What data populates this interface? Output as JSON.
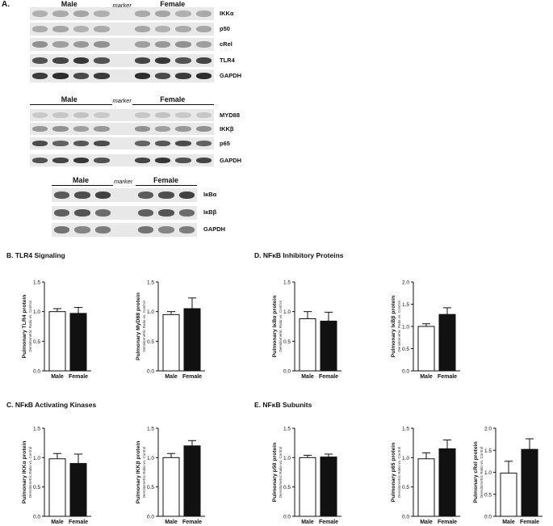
{
  "panel_a_label": "A.",
  "blots": [
    {
      "male_label": "Male",
      "marker_label": "marker",
      "female_label": "Female",
      "rows": [
        {
          "label": "IKKα",
          "intensity": 0.35
        },
        {
          "label": "p50",
          "intensity": 0.35
        },
        {
          "label": "cRel",
          "intensity": 0.45
        },
        {
          "label": "TLR4",
          "intensity": 0.9
        },
        {
          "label": "GAPDH",
          "intensity": 0.95
        }
      ]
    },
    {
      "male_label": "Male",
      "marker_label": "marker",
      "female_label": "Female",
      "rows": [
        {
          "label": "MYD88",
          "intensity": 0.2
        },
        {
          "label": "IKKβ",
          "intensity": 0.45
        },
        {
          "label": "p65",
          "intensity": 0.8
        },
        {
          "label": "GAPDH",
          "intensity": 0.9
        }
      ]
    },
    {
      "male_label": "Male",
      "marker_label": "marker",
      "female_label": "Female",
      "rows": [
        {
          "label": "IκBα",
          "intensity": 0.85
        },
        {
          "label": "IκBβ",
          "intensity": 0.75
        },
        {
          "label": "GAPDH",
          "intensity": 0.6
        }
      ]
    }
  ],
  "sections": {
    "b": "B. TLR4 Signaling",
    "c": "C. NFκB Activating Kinases",
    "d": "D. NFκB Inhibitory Proteins",
    "e": "E. NFκB Subunits"
  },
  "axis_subtitle": "Densitometric Ratio vs. Control",
  "colors": {
    "male": "#ffffff",
    "female": "#111111"
  },
  "chart_data": [
    {
      "type": "bar",
      "categories": [
        "Male",
        "Female"
      ],
      "values": [
        1.0,
        0.97
      ],
      "errors": [
        0.05,
        0.1
      ],
      "ylabel": "Pulmonary TLR4 protein",
      "ylim": [
        0,
        1.5
      ],
      "yticks": [
        "0.0",
        "0.5",
        "1.0",
        "1.5"
      ]
    },
    {
      "type": "bar",
      "categories": [
        "Male",
        "Female"
      ],
      "values": [
        0.95,
        1.05
      ],
      "errors": [
        0.05,
        0.18
      ],
      "ylabel": "Pulmonary MyD88 protein",
      "ylim": [
        0,
        1.5
      ],
      "yticks": [
        "0.0",
        "0.5",
        "1.0",
        "1.5"
      ]
    },
    {
      "type": "bar",
      "categories": [
        "Male",
        "Female"
      ],
      "values": [
        0.88,
        0.84
      ],
      "errors": [
        0.12,
        0.15
      ],
      "ylabel": "Pulmonary IκBα protein",
      "ylim": [
        0,
        1.5
      ],
      "yticks": [
        "0.0",
        "0.5",
        "1.0",
        "1.5"
      ]
    },
    {
      "type": "bar",
      "categories": [
        "Male",
        "Female"
      ],
      "values": [
        1.0,
        1.27
      ],
      "errors": [
        0.06,
        0.15
      ],
      "ylabel": "Pulmonary IκBβ protein",
      "ylim": [
        0,
        2.0
      ],
      "yticks": [
        "0.0",
        "0.5",
        "1.0",
        "1.5",
        "2.0"
      ]
    },
    {
      "type": "bar",
      "categories": [
        "Male",
        "Female"
      ],
      "values": [
        0.98,
        0.9
      ],
      "errors": [
        0.09,
        0.16
      ],
      "ylabel": "Pulmonary IKKα protein",
      "ylim": [
        0,
        1.5
      ],
      "yticks": [
        "0.0",
        "0.5",
        "1.0",
        "1.5"
      ]
    },
    {
      "type": "bar",
      "categories": [
        "Male",
        "Female"
      ],
      "values": [
        1.0,
        1.2
      ],
      "errors": [
        0.07,
        0.09
      ],
      "ylabel": "Pulmonary IKKβ protein",
      "ylim": [
        0,
        1.5
      ],
      "yticks": [
        "0.0",
        "0.5",
        "1.0",
        "1.5"
      ]
    },
    {
      "type": "bar",
      "categories": [
        "Male",
        "Female"
      ],
      "values": [
        1.0,
        1.01
      ],
      "errors": [
        0.04,
        0.05
      ],
      "ylabel": "Pulmonary p50 protein",
      "ylim": [
        0,
        1.5
      ],
      "yticks": [
        "0.0",
        "0.5",
        "1.0",
        "1.5"
      ]
    },
    {
      "type": "bar",
      "categories": [
        "Male",
        "Female"
      ],
      "values": [
        0.98,
        1.15
      ],
      "errors": [
        0.1,
        0.15
      ],
      "ylabel": "Pulmonary p65 protein",
      "ylim": [
        0,
        1.5
      ],
      "yticks": [
        "0.0",
        "0.5",
        "1.0",
        "1.5"
      ]
    },
    {
      "type": "bar",
      "categories": [
        "Male",
        "Female"
      ],
      "values": [
        0.98,
        1.52
      ],
      "errors": [
        0.27,
        0.24
      ],
      "ylabel": "Pulmonary cRel protein",
      "ylim": [
        0,
        2.0
      ],
      "yticks": [
        "0.0",
        "0.5",
        "1.0",
        "1.5",
        "2.0"
      ]
    }
  ]
}
